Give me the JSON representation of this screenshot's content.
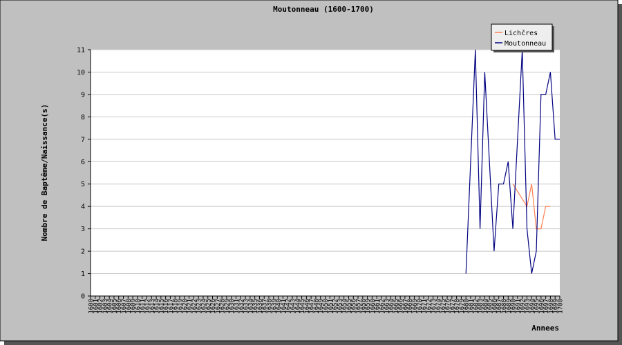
{
  "chart_data": {
    "type": "line",
    "title": "Moutonneau (1600-1700)",
    "xlabel": "Annees",
    "ylabel": "Nombre de Baptême/Naissance(s)",
    "ylim": [
      0,
      11
    ],
    "xlim": [
      1600,
      1700
    ],
    "grid": true,
    "legend_position": "top-right",
    "colors": {
      "background": "#c0c0c0",
      "plot": "#ffffff",
      "grid": "#c8c8c8",
      "shadow": "#555555"
    },
    "series": [
      {
        "name": "Lichčres",
        "color": "#ff7f50",
        "x": [
          1690,
          1693,
          1694,
          1695,
          1696,
          1697,
          1698
        ],
        "y": [
          5,
          4,
          5,
          3,
          3,
          4,
          4
        ]
      },
      {
        "name": "Moutonneau",
        "color": "#000080",
        "x": [
          1680,
          1682,
          1683,
          1684,
          1686,
          1687,
          1688,
          1689,
          1690,
          1692,
          1693,
          1694,
          1695,
          1696,
          1697,
          1698,
          1699,
          1700
        ],
        "y": [
          1,
          11,
          3,
          10,
          2,
          5,
          5,
          6,
          3,
          11,
          3,
          1,
          2,
          9,
          9,
          10,
          7,
          7
        ]
      }
    ]
  }
}
